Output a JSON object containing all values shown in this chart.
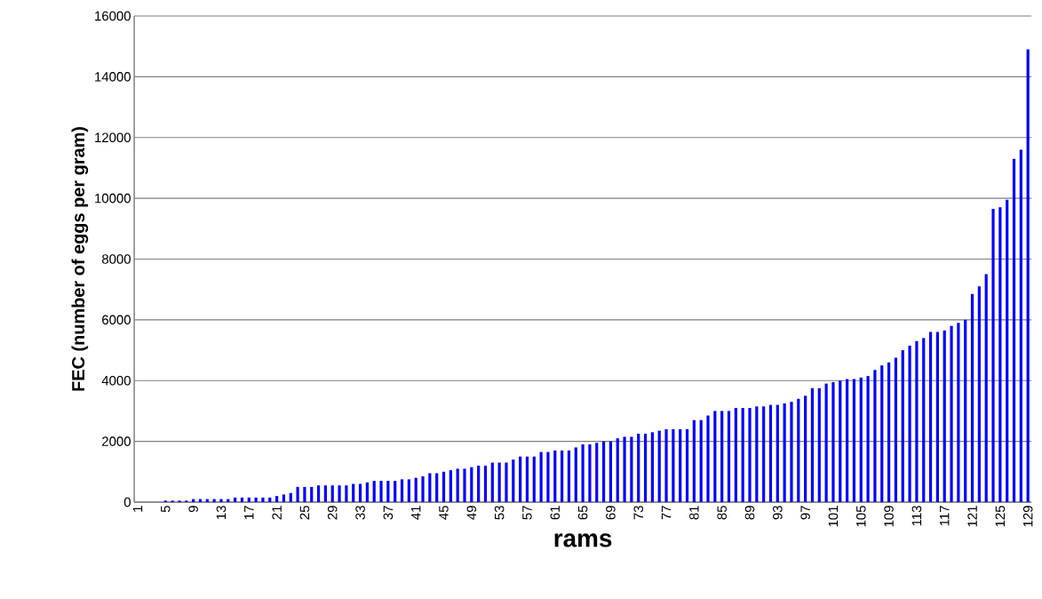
{
  "chart_data": {
    "type": "bar",
    "xlabel": "rams",
    "ylabel": "FEC (number of eggs per gram)",
    "categories": [
      "1",
      null,
      null,
      null,
      "5",
      null,
      null,
      null,
      "9",
      null,
      null,
      null,
      "13",
      null,
      null,
      null,
      "17",
      null,
      null,
      null,
      "21",
      null,
      null,
      null,
      "25",
      null,
      null,
      null,
      "29",
      null,
      null,
      null,
      "33",
      null,
      null,
      null,
      "37",
      null,
      null,
      null,
      "41",
      null,
      null,
      null,
      "45",
      null,
      null,
      null,
      "49",
      null,
      null,
      null,
      "53",
      null,
      null,
      null,
      "57",
      null,
      null,
      null,
      "61",
      null,
      null,
      null,
      "65",
      null,
      null,
      null,
      "69",
      null,
      null,
      null,
      "73",
      null,
      null,
      null,
      "77",
      null,
      null,
      null,
      "81",
      null,
      null,
      null,
      "85",
      null,
      null,
      null,
      "89",
      null,
      null,
      null,
      "93",
      null,
      null,
      null,
      "97",
      null,
      null,
      null,
      "101",
      null,
      null,
      null,
      "105",
      null,
      null,
      null,
      "109",
      null,
      null,
      null,
      "113",
      null,
      null,
      null,
      "117",
      null,
      null,
      null,
      "121",
      null,
      null,
      null,
      "125",
      null,
      null,
      null,
      "129"
    ],
    "values": [
      0,
      0,
      0,
      0,
      50,
      50,
      50,
      50,
      100,
      100,
      100,
      100,
      100,
      100,
      150,
      150,
      150,
      150,
      150,
      150,
      200,
      250,
      300,
      500,
      500,
      500,
      550,
      550,
      550,
      550,
      550,
      600,
      600,
      650,
      700,
      700,
      700,
      700,
      750,
      750,
      800,
      850,
      950,
      950,
      1000,
      1050,
      1100,
      1100,
      1150,
      1200,
      1200,
      1300,
      1300,
      1300,
      1400,
      1500,
      1500,
      1500,
      1650,
      1650,
      1700,
      1700,
      1700,
      1800,
      1900,
      1900,
      1950,
      2000,
      2000,
      2100,
      2150,
      2150,
      2250,
      2250,
      2300,
      2350,
      2400,
      2400,
      2400,
      2400,
      2700,
      2700,
      2850,
      3000,
      3000,
      3000,
      3100,
      3100,
      3100,
      3150,
      3150,
      3200,
      3200,
      3250,
      3300,
      3400,
      3500,
      3750,
      3750,
      3900,
      3950,
      4000,
      4050,
      4050,
      4100,
      4150,
      4350,
      4500,
      4600,
      4750,
      5000,
      5150,
      5300,
      5400,
      5600,
      5600,
      5650,
      5800,
      5900,
      6000,
      6850,
      7100,
      7500,
      9650,
      9700,
      9950,
      11300,
      11600,
      14900
    ],
    "color": "#0000ff",
    "ylim": [
      0,
      16000
    ],
    "yticks": [
      0,
      2000,
      4000,
      6000,
      8000,
      10000,
      12000,
      14000,
      16000
    ],
    "grid": "y"
  }
}
